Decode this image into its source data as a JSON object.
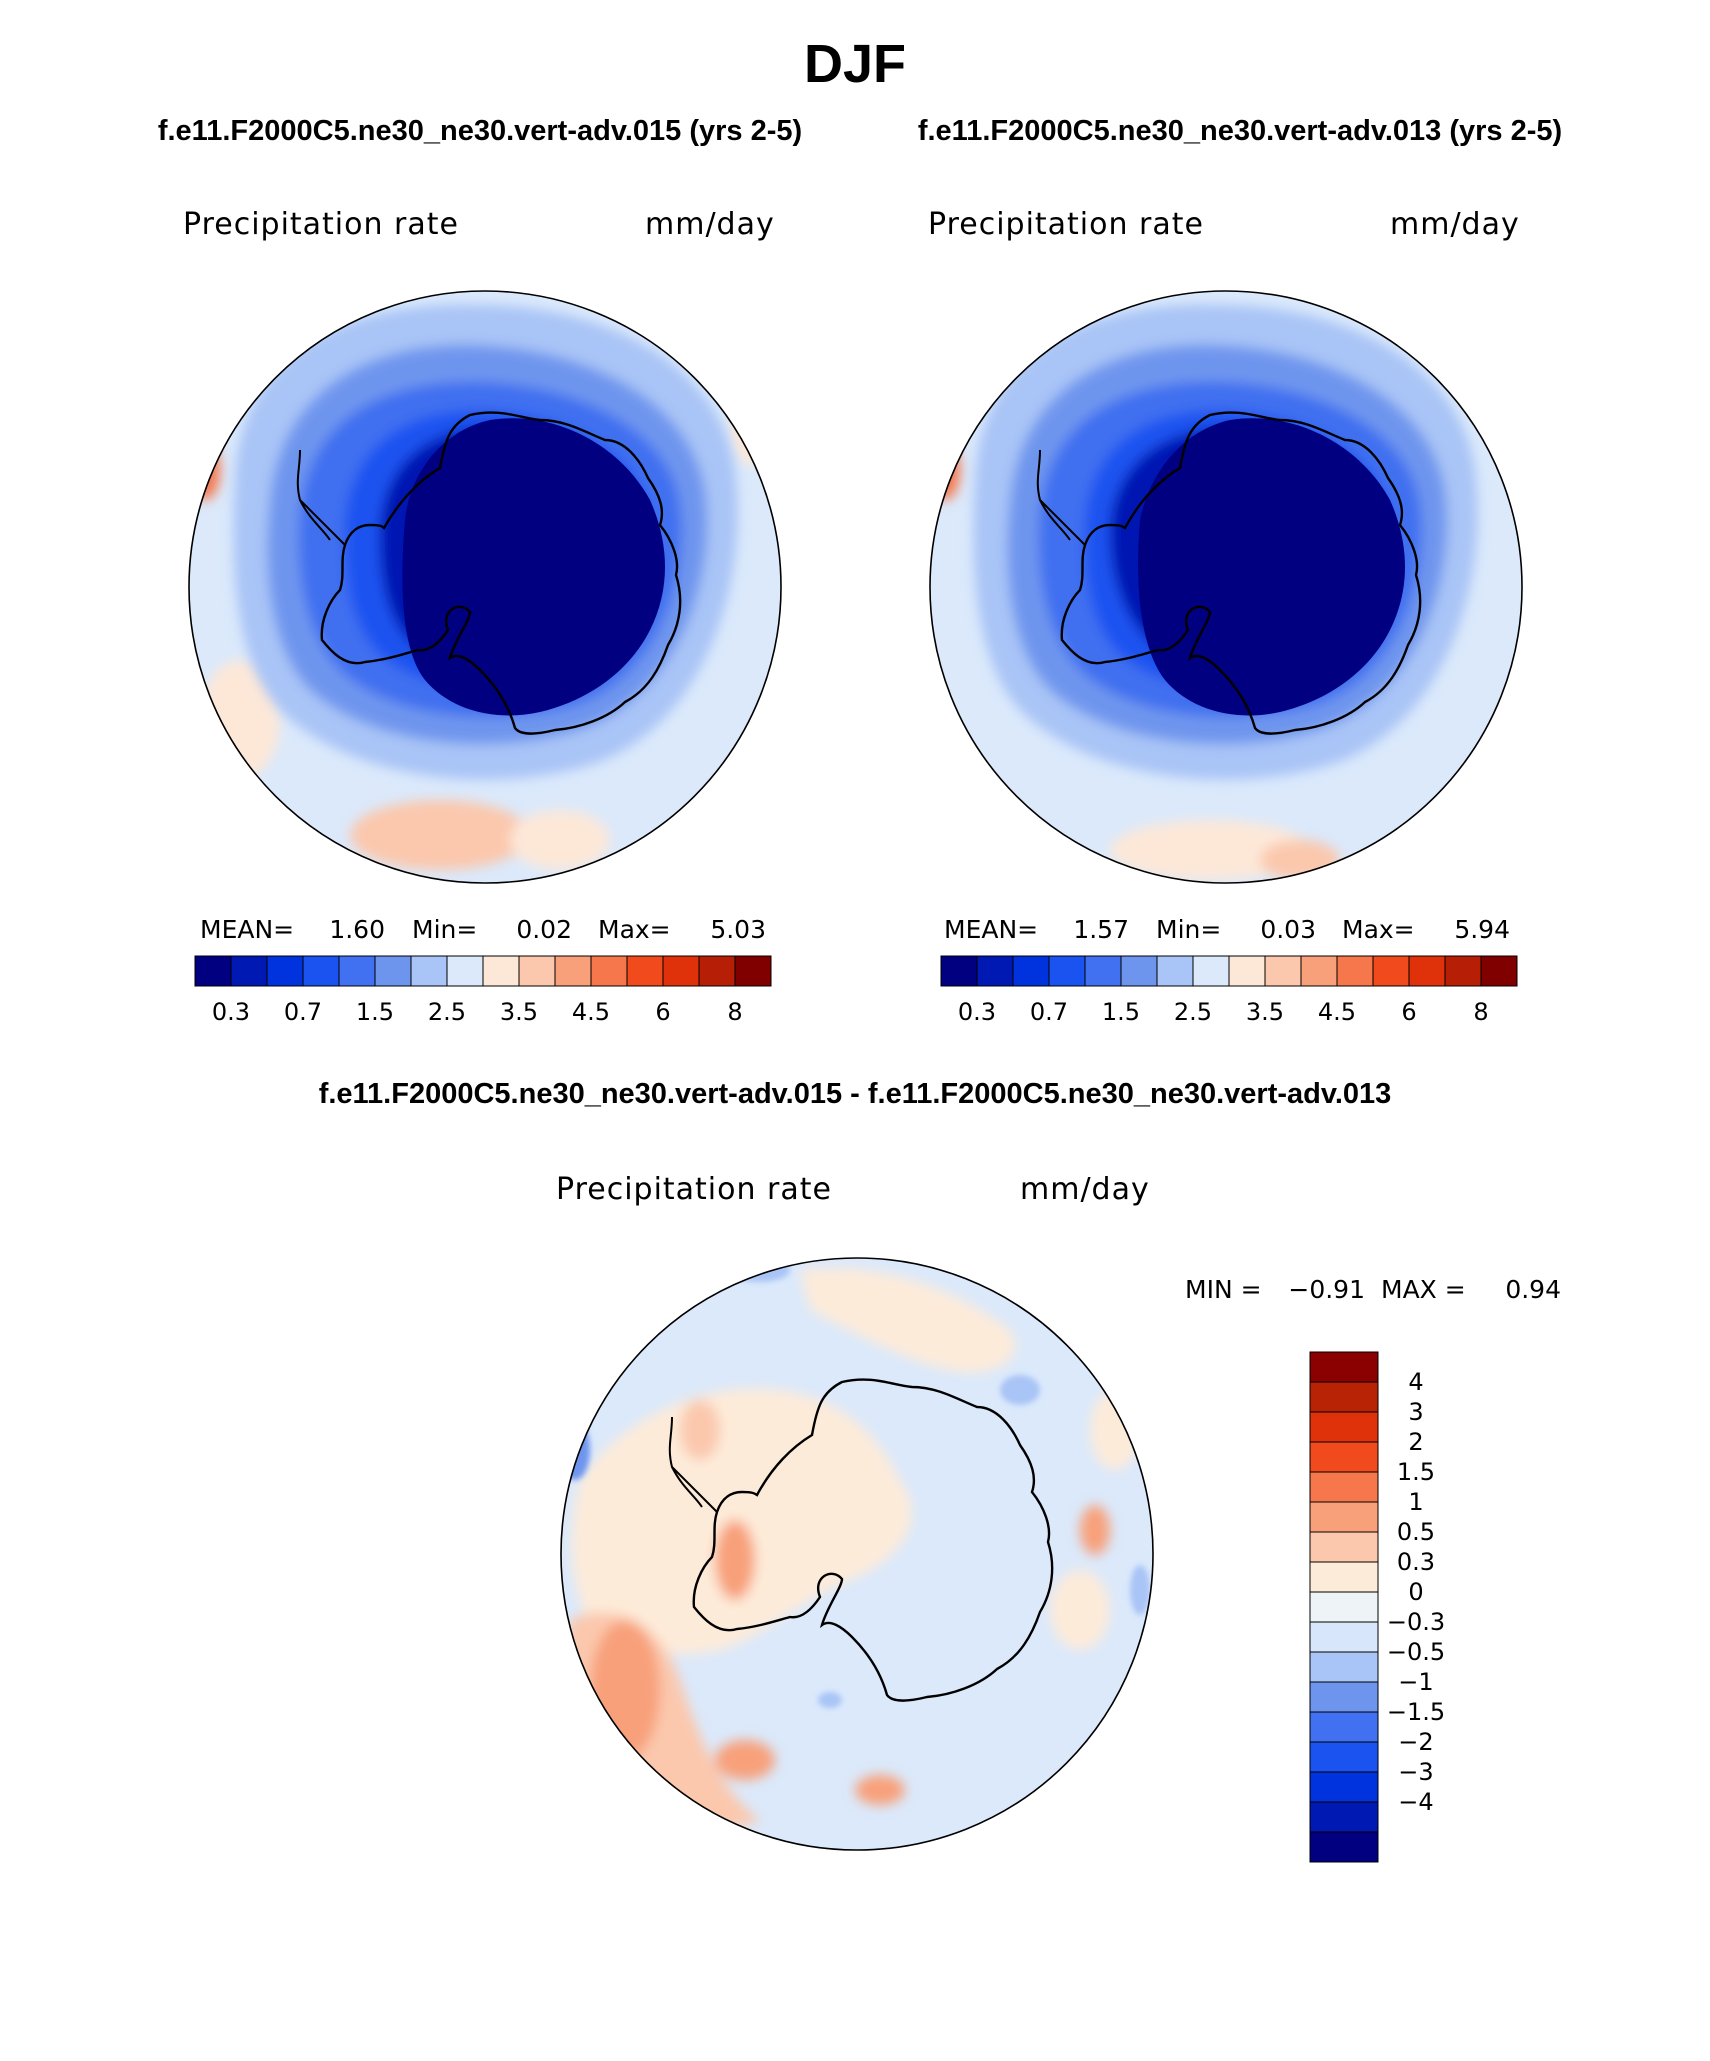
{
  "figure": {
    "title": "DJF",
    "left_case": "f.e11.F2000C5.ne30_ne30.vert-adv.015 (yrs 2-5)",
    "right_case": "f.e11.F2000C5.ne30_ne30.vert-adv.013 (yrs 2-5)",
    "diff_case": "f.e11.F2000C5.ne30_ne30.vert-adv.015 - f.e11.F2000C5.ne30_ne30.vert-adv.013"
  },
  "panels": {
    "left": {
      "variable": "Precipitation rate",
      "units": "mm/day",
      "stats": {
        "mean_label": "MEAN=",
        "mean": "1.60",
        "min_label": "Min=",
        "min": "0.02",
        "max_label": "Max=",
        "max": "5.03"
      }
    },
    "right": {
      "variable": "Precipitation rate",
      "units": "mm/day",
      "stats": {
        "mean_label": "MEAN=",
        "mean": "1.57",
        "min_label": "Min=",
        "min": "0.03",
        "max_label": "Max=",
        "max": "5.94"
      }
    },
    "diff": {
      "variable": "Precipitation rate",
      "units": "mm/day",
      "stats": {
        "min_label": "MIN =",
        "min": "−0.91",
        "max_label": "MAX =",
        "max": "0.94"
      }
    }
  },
  "colorbars": {
    "precip": {
      "colors": [
        "#000080",
        "#0019b3",
        "#0033dd",
        "#1a53f0",
        "#4170f0",
        "#6e95ee",
        "#a9c4f6",
        "#dbe9fb",
        "#fde8d8",
        "#fbc8ad",
        "#f8a07a",
        "#f6774b",
        "#f14a1c",
        "#e0320a",
        "#b61f05",
        "#800000"
      ],
      "tick_labels": [
        "0.3",
        "0.7",
        "1.5",
        "2.5",
        "3.5",
        "4.5",
        "6",
        "8"
      ]
    },
    "diff": {
      "colors_top_to_bottom": [
        "#8b0000",
        "#b92305",
        "#e0320a",
        "#f14a1c",
        "#f6774b",
        "#f8a07a",
        "#fbc8ad",
        "#fdebd9",
        "#eef3f8",
        "#d7e6fb",
        "#a9c4f6",
        "#6e95ee",
        "#4170f0",
        "#1a53f0",
        "#0033dd",
        "#0019b3",
        "#000080"
      ],
      "tick_labels_top_to_bottom": [
        "4",
        "3",
        "2",
        "1.5",
        "1",
        "0.5",
        "0.3",
        "0",
        "−0.3",
        "−0.5",
        "−1",
        "−1.5",
        "−2",
        "−3",
        "−4"
      ]
    }
  }
}
